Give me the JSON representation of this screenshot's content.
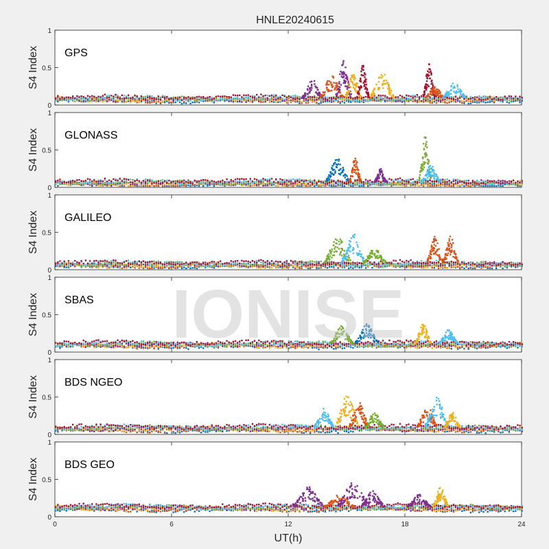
{
  "chart_data": {
    "type": "scatter",
    "title": "HNLE20240615",
    "xlabel": "UT(h)",
    "watermark": "IONISE",
    "xlim": [
      0,
      24
    ],
    "xticks": [
      0,
      6,
      12,
      18,
      24
    ],
    "ylim": [
      0,
      1
    ],
    "yticks": [
      0,
      0.5,
      1
    ],
    "ytick_labels": [
      "0",
      "0.5",
      "1"
    ],
    "colors": [
      "#0072BD",
      "#D95319",
      "#EDB120",
      "#7E2F8E",
      "#77AC30",
      "#4DBEEE",
      "#A2142F"
    ],
    "panels": [
      {
        "label": "GPS",
        "ylabel": "S4 Index",
        "baseline": 0.08,
        "bursts": [
          {
            "x": 13.2,
            "y": 0.35,
            "w": 0.5,
            "c": 3
          },
          {
            "x": 14.2,
            "y": 0.4,
            "w": 0.6,
            "c": 1
          },
          {
            "x": 14.8,
            "y": 0.6,
            "w": 0.4,
            "c": 3
          },
          {
            "x": 15.3,
            "y": 0.45,
            "w": 0.4,
            "c": 2
          },
          {
            "x": 15.8,
            "y": 0.55,
            "w": 0.3,
            "c": 6
          },
          {
            "x": 16.8,
            "y": 0.45,
            "w": 0.6,
            "c": 2
          },
          {
            "x": 19.2,
            "y": 0.55,
            "w": 0.3,
            "c": 6
          },
          {
            "x": 19.5,
            "y": 0.25,
            "w": 0.5,
            "c": 1
          },
          {
            "x": 20.5,
            "y": 0.3,
            "w": 0.6,
            "c": 5
          }
        ]
      },
      {
        "label": "GLONASS",
        "ylabel": "S4 Index",
        "baseline": 0.06,
        "bursts": [
          {
            "x": 14.5,
            "y": 0.4,
            "w": 0.6,
            "c": 0
          },
          {
            "x": 15.4,
            "y": 0.4,
            "w": 0.3,
            "c": 1
          },
          {
            "x": 16.7,
            "y": 0.25,
            "w": 0.3,
            "c": 3
          },
          {
            "x": 19.0,
            "y": 0.7,
            "w": 0.3,
            "c": 4
          },
          {
            "x": 19.3,
            "y": 0.3,
            "w": 0.5,
            "c": 5
          }
        ]
      },
      {
        "label": "GALILEO",
        "ylabel": "S4 Index",
        "baseline": 0.07,
        "bursts": [
          {
            "x": 14.5,
            "y": 0.45,
            "w": 0.7,
            "c": 4
          },
          {
            "x": 15.3,
            "y": 0.5,
            "w": 0.6,
            "c": 5
          },
          {
            "x": 16.4,
            "y": 0.3,
            "w": 0.6,
            "c": 4
          },
          {
            "x": 19.5,
            "y": 0.45,
            "w": 0.4,
            "c": 1
          },
          {
            "x": 20.3,
            "y": 0.45,
            "w": 0.4,
            "c": 1
          }
        ]
      },
      {
        "label": "SBAS",
        "ylabel": "S4 Index",
        "baseline": 0.1,
        "bursts": [
          {
            "x": 14.7,
            "y": 0.35,
            "w": 0.6,
            "c": 4
          },
          {
            "x": 16.0,
            "y": 0.38,
            "w": 0.6,
            "c": 0
          },
          {
            "x": 18.9,
            "y": 0.4,
            "w": 0.4,
            "c": 2
          },
          {
            "x": 20.2,
            "y": 0.3,
            "w": 0.5,
            "c": 5
          }
        ]
      },
      {
        "label": "BDS NGEO",
        "ylabel": "S4 Index",
        "baseline": 0.08,
        "bursts": [
          {
            "x": 13.8,
            "y": 0.35,
            "w": 0.5,
            "c": 5
          },
          {
            "x": 15.0,
            "y": 0.55,
            "w": 0.6,
            "c": 2
          },
          {
            "x": 15.6,
            "y": 0.45,
            "w": 0.5,
            "c": 1
          },
          {
            "x": 16.4,
            "y": 0.3,
            "w": 0.5,
            "c": 4
          },
          {
            "x": 19.1,
            "y": 0.4,
            "w": 0.5,
            "c": 1
          },
          {
            "x": 19.6,
            "y": 0.5,
            "w": 0.6,
            "c": 5
          },
          {
            "x": 20.4,
            "y": 0.3,
            "w": 0.4,
            "c": 2
          }
        ]
      },
      {
        "label": "BDS GEO",
        "ylabel": "S4 Index",
        "baseline": 0.12,
        "bursts": [
          {
            "x": 13.0,
            "y": 0.4,
            "w": 0.8,
            "c": 3
          },
          {
            "x": 14.6,
            "y": 0.3,
            "w": 0.8,
            "c": 1
          },
          {
            "x": 15.3,
            "y": 0.5,
            "w": 0.8,
            "c": 3
          },
          {
            "x": 16.3,
            "y": 0.35,
            "w": 0.6,
            "c": 3
          },
          {
            "x": 18.7,
            "y": 0.3,
            "w": 0.6,
            "c": 3
          },
          {
            "x": 19.8,
            "y": 0.4,
            "w": 0.4,
            "c": 2
          }
        ]
      }
    ]
  }
}
